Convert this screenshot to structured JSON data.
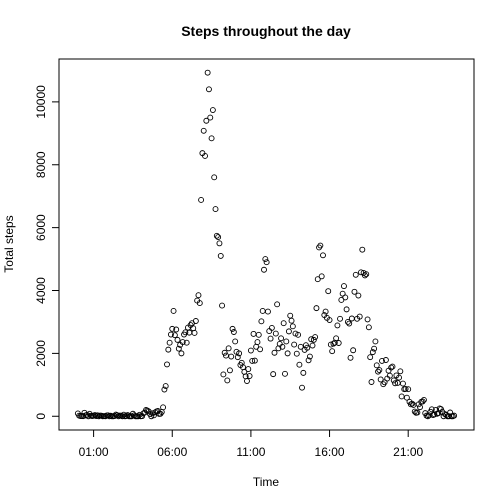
{
  "chart_data": {
    "type": "scatter",
    "title": "Steps throughout the day",
    "xlabel": "Time",
    "ylabel": "Total steps",
    "xlim": [
      -72,
      1511
    ],
    "ylim": [
      -437,
      11364
    ],
    "x_ticks": [
      {
        "value": 60,
        "label": "01:00"
      },
      {
        "value": 360,
        "label": "06:00"
      },
      {
        "value": 660,
        "label": "11:00"
      },
      {
        "value": 960,
        "label": "16:00"
      },
      {
        "value": 1260,
        "label": "21:00"
      }
    ],
    "y_ticks": [
      {
        "value": 0,
        "label": "0"
      },
      {
        "value": 2000,
        "label": "2000"
      },
      {
        "value": 4000,
        "label": "4000"
      },
      {
        "value": 6000,
        "label": "6000"
      },
      {
        "value": 8000,
        "label": "8000"
      },
      {
        "value": 10000,
        "label": "10000"
      }
    ],
    "grid": false,
    "marker": "open-circle",
    "x_unit": "minutes after midnight",
    "points": [
      [
        0,
        91
      ],
      [
        5,
        18
      ],
      [
        10,
        7
      ],
      [
        15,
        8
      ],
      [
        20,
        4
      ],
      [
        25,
        111
      ],
      [
        30,
        28
      ],
      [
        35,
        46
      ],
      [
        40,
        0
      ],
      [
        45,
        78
      ],
      [
        50,
        16
      ],
      [
        55,
        7
      ],
      [
        60,
        17
      ],
      [
        65,
        39
      ],
      [
        70,
        8
      ],
      [
        75,
        31
      ],
      [
        80,
        0
      ],
      [
        85,
        20
      ],
      [
        90,
        19
      ],
      [
        95,
        0
      ],
      [
        100,
        5
      ],
      [
        105,
        0
      ],
      [
        110,
        25
      ],
      [
        115,
        30
      ],
      [
        120,
        0
      ],
      [
        125,
        18
      ],
      [
        130,
        0
      ],
      [
        135,
        0
      ],
      [
        140,
        9
      ],
      [
        145,
        55
      ],
      [
        150,
        35
      ],
      [
        155,
        0
      ],
      [
        160,
        23
      ],
      [
        165,
        16
      ],
      [
        170,
        0
      ],
      [
        175,
        51
      ],
      [
        180,
        0
      ],
      [
        185,
        10
      ],
      [
        190,
        38
      ],
      [
        195,
        0
      ],
      [
        200,
        0
      ],
      [
        205,
        0
      ],
      [
        210,
        80
      ],
      [
        215,
        30
      ],
      [
        220,
        0
      ],
      [
        225,
        0
      ],
      [
        230,
        0
      ],
      [
        235,
        46
      ],
      [
        240,
        0
      ],
      [
        245,
        5
      ],
      [
        250,
        95
      ],
      [
        255,
        117
      ],
      [
        260,
        199
      ],
      [
        265,
        179
      ],
      [
        270,
        157
      ],
      [
        275,
        71
      ],
      [
        280,
        0
      ],
      [
        285,
        93
      ],
      [
        290,
        29
      ],
      [
        295,
        126
      ],
      [
        300,
        154
      ],
      [
        305,
        167
      ],
      [
        310,
        75
      ],
      [
        315,
        80
      ],
      [
        320,
        136
      ],
      [
        325,
        284
      ],
      [
        330,
        850
      ],
      [
        335,
        960
      ],
      [
        340,
        1650
      ],
      [
        345,
        2120
      ],
      [
        350,
        2340
      ],
      [
        355,
        2600
      ],
      [
        360,
        2780
      ],
      [
        365,
        3350
      ],
      [
        370,
        2580
      ],
      [
        375,
        2760
      ],
      [
        380,
        2430
      ],
      [
        385,
        2150
      ],
      [
        390,
        2270
      ],
      [
        395,
        2000
      ],
      [
        400,
        2360
      ],
      [
        405,
        2600
      ],
      [
        410,
        2670
      ],
      [
        415,
        2340
      ],
      [
        420,
        2820
      ],
      [
        425,
        2660
      ],
      [
        430,
        2900
      ],
      [
        435,
        2960
      ],
      [
        440,
        2800
      ],
      [
        445,
        2650
      ],
      [
        450,
        3030
      ],
      [
        455,
        3680
      ],
      [
        460,
        3850
      ],
      [
        465,
        3600
      ],
      [
        470,
        6880
      ],
      [
        475,
        8370
      ],
      [
        480,
        9080
      ],
      [
        485,
        8280
      ],
      [
        490,
        9400
      ],
      [
        495,
        10930
      ],
      [
        500,
        10400
      ],
      [
        505,
        9500
      ],
      [
        510,
        8840
      ],
      [
        515,
        9740
      ],
      [
        520,
        7600
      ],
      [
        525,
        6590
      ],
      [
        530,
        5740
      ],
      [
        535,
        5700
      ],
      [
        540,
        5500
      ],
      [
        545,
        5100
      ],
      [
        550,
        3520
      ],
      [
        555,
        1330
      ],
      [
        560,
        2020
      ],
      [
        565,
        1930
      ],
      [
        570,
        1140
      ],
      [
        575,
        2160
      ],
      [
        580,
        1460
      ],
      [
        585,
        1900
      ],
      [
        590,
        2780
      ],
      [
        595,
        2680
      ],
      [
        600,
        2380
      ],
      [
        605,
        2050
      ],
      [
        610,
        1880
      ],
      [
        615,
        2000
      ],
      [
        620,
        1630
      ],
      [
        625,
        1700
      ],
      [
        630,
        1560
      ],
      [
        635,
        1410
      ],
      [
        640,
        1270
      ],
      [
        645,
        1120
      ],
      [
        650,
        1500
      ],
      [
        655,
        1280
      ],
      [
        660,
        2090
      ],
      [
        665,
        1760
      ],
      [
        670,
        2620
      ],
      [
        675,
        1770
      ],
      [
        680,
        2210
      ],
      [
        685,
        2360
      ],
      [
        690,
        2590
      ],
      [
        695,
        2130
      ],
      [
        700,
        3020
      ],
      [
        705,
        3350
      ],
      [
        710,
        4660
      ],
      [
        715,
        5000
      ],
      [
        720,
        4900
      ],
      [
        725,
        3330
      ],
      [
        730,
        2710
      ],
      [
        735,
        2470
      ],
      [
        740,
        2810
      ],
      [
        745,
        1340
      ],
      [
        750,
        2020
      ],
      [
        755,
        2630
      ],
      [
        760,
        3560
      ],
      [
        765,
        2160
      ],
      [
        770,
        2300
      ],
      [
        775,
        2480
      ],
      [
        780,
        2210
      ],
      [
        785,
        2960
      ],
      [
        790,
        1350
      ],
      [
        795,
        2380
      ],
      [
        800,
        2000
      ],
      [
        805,
        2700
      ],
      [
        810,
        3200
      ],
      [
        815,
        3040
      ],
      [
        820,
        2860
      ],
      [
        825,
        2280
      ],
      [
        830,
        2630
      ],
      [
        835,
        1990
      ],
      [
        840,
        2590
      ],
      [
        845,
        1640
      ],
      [
        850,
        2210
      ],
      [
        855,
        910
      ],
      [
        860,
        1380
      ],
      [
        865,
        2110
      ],
      [
        870,
        2260
      ],
      [
        875,
        2180
      ],
      [
        880,
        1780
      ],
      [
        885,
        1900
      ],
      [
        890,
        2450
      ],
      [
        895,
        2250
      ],
      [
        900,
        2430
      ],
      [
        905,
        2520
      ],
      [
        910,
        3440
      ],
      [
        915,
        4360
      ],
      [
        920,
        5370
      ],
      [
        925,
        5430
      ],
      [
        930,
        4450
      ],
      [
        935,
        5120
      ],
      [
        940,
        3220
      ],
      [
        945,
        3330
      ],
      [
        950,
        3130
      ],
      [
        955,
        3980
      ],
      [
        960,
        3060
      ],
      [
        965,
        2280
      ],
      [
        970,
        2070
      ],
      [
        975,
        2310
      ],
      [
        980,
        2340
      ],
      [
        985,
        2480
      ],
      [
        990,
        2890
      ],
      [
        995,
        2330
      ],
      [
        1000,
        3100
      ],
      [
        1005,
        3700
      ],
      [
        1010,
        3900
      ],
      [
        1015,
        4140
      ],
      [
        1020,
        3780
      ],
      [
        1025,
        3400
      ],
      [
        1030,
        3000
      ],
      [
        1035,
        2950
      ],
      [
        1040,
        1860
      ],
      [
        1045,
        3110
      ],
      [
        1050,
        2100
      ],
      [
        1055,
        3960
      ],
      [
        1060,
        4500
      ],
      [
        1065,
        3100
      ],
      [
        1070,
        3840
      ],
      [
        1075,
        3170
      ],
      [
        1080,
        4580
      ],
      [
        1085,
        5300
      ],
      [
        1090,
        4560
      ],
      [
        1095,
        4480
      ],
      [
        1100,
        4520
      ],
      [
        1105,
        3080
      ],
      [
        1110,
        2830
      ],
      [
        1115,
        1880
      ],
      [
        1120,
        1090
      ],
      [
        1125,
        2040
      ],
      [
        1130,
        2150
      ],
      [
        1135,
        2380
      ],
      [
        1140,
        1620
      ],
      [
        1145,
        1420
      ],
      [
        1150,
        1470
      ],
      [
        1155,
        1170
      ],
      [
        1160,
        1760
      ],
      [
        1165,
        1020
      ],
      [
        1170,
        1080
      ],
      [
        1175,
        1790
      ],
      [
        1180,
        1200
      ],
      [
        1185,
        1450
      ],
      [
        1190,
        1290
      ],
      [
        1195,
        1550
      ],
      [
        1200,
        1580
      ],
      [
        1205,
        1140
      ],
      [
        1210,
        1050
      ],
      [
        1215,
        1300
      ],
      [
        1220,
        1060
      ],
      [
        1225,
        1230
      ],
      [
        1230,
        1430
      ],
      [
        1235,
        630
      ],
      [
        1240,
        1040
      ],
      [
        1245,
        860
      ],
      [
        1250,
        870
      ],
      [
        1255,
        590
      ],
      [
        1260,
        860
      ],
      [
        1265,
        460
      ],
      [
        1270,
        380
      ],
      [
        1275,
        400
      ],
      [
        1280,
        360
      ],
      [
        1285,
        150
      ],
      [
        1290,
        110
      ],
      [
        1295,
        120
      ],
      [
        1300,
        380
      ],
      [
        1305,
        290
      ],
      [
        1310,
        460
      ],
      [
        1315,
        470
      ],
      [
        1320,
        520
      ],
      [
        1325,
        100
      ],
      [
        1330,
        20
      ],
      [
        1335,
        0
      ],
      [
        1340,
        30
      ],
      [
        1345,
        140
      ],
      [
        1350,
        220
      ],
      [
        1355,
        40
      ],
      [
        1360,
        60
      ],
      [
        1365,
        200
      ],
      [
        1370,
        80
      ],
      [
        1375,
        100
      ],
      [
        1380,
        250
      ],
      [
        1385,
        230
      ],
      [
        1390,
        140
      ],
      [
        1395,
        0
      ],
      [
        1400,
        70
      ],
      [
        1405,
        40
      ],
      [
        1410,
        0
      ],
      [
        1415,
        0
      ],
      [
        1420,
        120
      ],
      [
        1425,
        0
      ],
      [
        1430,
        0
      ],
      [
        1435,
        20
      ]
    ]
  }
}
